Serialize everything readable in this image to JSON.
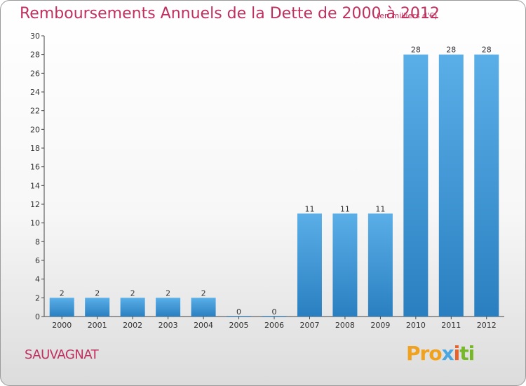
{
  "header": {
    "title": "Remboursements Annuels de la Dette de 2000 à 2012",
    "subtitle": "(en milliers d'€)"
  },
  "footer": {
    "commune": "SAUVAGNAT",
    "logo": {
      "p1": "Pro",
      "p2": "x",
      "p3": "i",
      "p4": "ti"
    }
  },
  "colors": {
    "title": "#c0305e",
    "bar_top": "#5aafe8",
    "bar_bottom": "#2a7fc0"
  },
  "chart_data": {
    "type": "bar",
    "title": "Remboursements Annuels de la Dette de 2000 à 2012",
    "subtitle": "(en milliers d'€)",
    "xlabel": "",
    "ylabel": "",
    "categories": [
      "2000",
      "2001",
      "2002",
      "2003",
      "2004",
      "2005",
      "2006",
      "2007",
      "2008",
      "2009",
      "2010",
      "2011",
      "2012"
    ],
    "values": [
      2,
      2,
      2,
      2,
      2,
      0,
      0,
      11,
      11,
      11,
      28,
      28,
      28
    ],
    "ylim": [
      0,
      30
    ],
    "yticks": [
      0,
      2,
      4,
      6,
      8,
      10,
      12,
      14,
      16,
      18,
      20,
      22,
      24,
      26,
      28,
      30
    ],
    "grid": false,
    "legend": "none"
  }
}
